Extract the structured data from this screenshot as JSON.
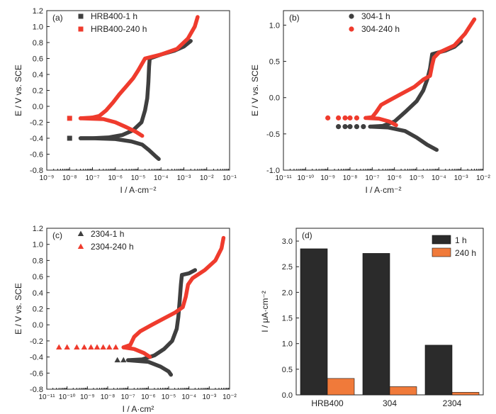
{
  "chart_data": [
    {
      "type": "scatter",
      "panel_label": "(a)",
      "xlabel": "I / A·cm⁻²",
      "ylabel": "E / V vs. SCE",
      "xscale": "log",
      "xlim": [
        1e-09,
        0.1
      ],
      "ylim": [
        -0.8,
        1.2
      ],
      "x_ticks": [
        "10⁻⁹",
        "10⁻⁸",
        "10⁻⁷",
        "10⁻⁶",
        "10⁻⁵",
        "10⁻⁴",
        "10⁻³",
        "10⁻²",
        "10⁻¹"
      ],
      "y_ticks": [
        -0.8,
        -0.6,
        -0.4,
        -0.2,
        0.0,
        0.2,
        0.4,
        0.6,
        0.8,
        1.0,
        1.2
      ],
      "legend_position": "top-left",
      "series": [
        {
          "name": "HRB400-1 h",
          "marker": "square",
          "color": "#3f3f3f",
          "anodic": [
            [
              3e-08,
              -0.4
            ],
            [
              1e-07,
              -0.4
            ],
            [
              5e-07,
              -0.39
            ],
            [
              2e-06,
              -0.36
            ],
            [
              6e-06,
              -0.3
            ],
            [
              1.4e-05,
              -0.2
            ],
            [
              2e-05,
              -0.05
            ],
            [
              2.5e-05,
              0.1
            ],
            [
              2.8e-05,
              0.3
            ],
            [
              3e-05,
              0.5
            ],
            [
              3.2e-05,
              0.6
            ],
            [
              0.0001,
              0.65
            ],
            [
              0.0004,
              0.7
            ],
            [
              0.001,
              0.75
            ],
            [
              0.002,
              0.82
            ]
          ],
          "cathodic": [
            [
              3e-08,
              -0.4
            ],
            [
              1e-07,
              -0.4
            ],
            [
              1e-06,
              -0.41
            ],
            [
              5e-06,
              -0.44
            ],
            [
              1.5e-05,
              -0.48
            ],
            [
              3e-05,
              -0.55
            ],
            [
              6e-05,
              -0.63
            ],
            [
              8e-05,
              -0.66
            ]
          ],
          "sparse": [
            [
              1e-08,
              -0.4
            ]
          ]
        },
        {
          "name": "HRB400-240 h",
          "marker": "square",
          "color": "#ef3b2d",
          "anodic": [
            [
              3e-08,
              -0.15
            ],
            [
              1e-07,
              -0.14
            ],
            [
              2e-07,
              -0.12
            ],
            [
              4e-07,
              -0.05
            ],
            [
              8e-07,
              0.05
            ],
            [
              1.5e-06,
              0.15
            ],
            [
              3e-06,
              0.25
            ],
            [
              6e-06,
              0.35
            ],
            [
              1e-05,
              0.45
            ],
            [
              2e-05,
              0.6
            ],
            [
              0.0001,
              0.65
            ],
            [
              0.0005,
              0.72
            ],
            [
              0.0015,
              0.85
            ],
            [
              0.003,
              1.0
            ],
            [
              0.004,
              1.12
            ]
          ],
          "cathodic": [
            [
              3e-08,
              -0.15
            ],
            [
              3e-07,
              -0.16
            ],
            [
              1e-06,
              -0.2
            ],
            [
              3e-06,
              -0.26
            ],
            [
              8e-06,
              -0.32
            ],
            [
              1.5e-05,
              -0.37
            ]
          ],
          "sparse": [
            [
              1e-08,
              -0.15
            ]
          ]
        }
      ]
    },
    {
      "type": "scatter",
      "panel_label": "(b)",
      "xlabel": "I / A·cm⁻²",
      "ylabel": "E / V vs. SCE",
      "xscale": "log",
      "xlim": [
        1e-11,
        0.01
      ],
      "ylim": [
        -1.0,
        1.2
      ],
      "x_ticks": [
        "10⁻¹¹",
        "10⁻¹⁰",
        "10⁻⁹",
        "10⁻⁸",
        "10⁻⁷",
        "10⁻⁶",
        "10⁻⁵",
        "10⁻⁴",
        "10⁻³",
        "10⁻²"
      ],
      "y_ticks": [
        -1.0,
        -0.5,
        0.0,
        0.5,
        1.0
      ],
      "legend_position": "top-left",
      "series": [
        {
          "name": "304-1 h",
          "marker": "circle",
          "color": "#3f3f3f",
          "anodic": [
            [
              8e-08,
              -0.4
            ],
            [
              3e-07,
              -0.39
            ],
            [
              1e-06,
              -0.33
            ],
            [
              3e-06,
              -0.2
            ],
            [
              1e-05,
              -0.05
            ],
            [
              2e-05,
              0.1
            ],
            [
              3e-05,
              0.25
            ],
            [
              4e-05,
              0.4
            ],
            [
              5e-05,
              0.6
            ],
            [
              0.0002,
              0.65
            ],
            [
              0.0005,
              0.7
            ],
            [
              0.001,
              0.78
            ]
          ],
          "cathodic": [
            [
              8e-08,
              -0.4
            ],
            [
              5e-07,
              -0.41
            ],
            [
              3e-06,
              -0.46
            ],
            [
              1e-05,
              -0.55
            ],
            [
              3e-05,
              -0.65
            ],
            [
              8e-05,
              -0.72
            ]
          ],
          "sparse": [
            [
              3e-09,
              -0.4
            ],
            [
              6e-09,
              -0.4
            ],
            [
              1e-08,
              -0.4
            ],
            [
              2e-08,
              -0.4
            ],
            [
              4e-08,
              -0.4
            ]
          ]
        },
        {
          "name": "304-240 h",
          "marker": "circle",
          "color": "#ef3b2d",
          "anodic": [
            [
              5e-08,
              -0.28
            ],
            [
              1e-07,
              -0.27
            ],
            [
              1.5e-07,
              -0.2
            ],
            [
              2.5e-07,
              -0.1
            ],
            [
              5e-07,
              -0.05
            ],
            [
              2e-06,
              0.05
            ],
            [
              8e-06,
              0.15
            ],
            [
              2e-05,
              0.25
            ],
            [
              4e-05,
              0.3
            ],
            [
              5e-05,
              0.45
            ],
            [
              6e-05,
              0.55
            ],
            [
              0.0001,
              0.62
            ],
            [
              0.0005,
              0.72
            ],
            [
              0.0015,
              0.88
            ],
            [
              0.004,
              1.08
            ]
          ],
          "cathodic": [
            [
              5e-08,
              -0.28
            ],
            [
              2e-07,
              -0.29
            ],
            [
              6e-07,
              -0.33
            ],
            [
              1.2e-06,
              -0.38
            ]
          ],
          "sparse": [
            [
              1e-09,
              -0.28
            ],
            [
              3e-09,
              -0.28
            ],
            [
              6e-09,
              -0.28
            ],
            [
              1e-08,
              -0.28
            ],
            [
              2e-08,
              -0.28
            ]
          ]
        }
      ]
    },
    {
      "type": "scatter",
      "panel_label": "(c)",
      "xlabel": "I / A·cm²",
      "ylabel": "E / V vs. SCE",
      "xscale": "log",
      "xlim": [
        1e-11,
        0.01
      ],
      "ylim": [
        -0.8,
        1.2
      ],
      "x_ticks": [
        "10⁻¹¹",
        "10⁻¹⁰",
        "10⁻⁹",
        "10⁻⁸",
        "10⁻⁷",
        "10⁻⁶",
        "10⁻⁵",
        "10⁻⁴",
        "10⁻³",
        "10⁻²"
      ],
      "y_ticks": [
        -0.8,
        -0.6,
        -0.4,
        -0.2,
        0.0,
        0.2,
        0.4,
        0.6,
        0.8,
        1.0,
        1.2
      ],
      "legend_position": "top-left",
      "series": [
        {
          "name": "2304-1 h",
          "marker": "triangle",
          "color": "#3f3f3f",
          "anodic": [
            [
              1e-07,
              -0.44
            ],
            [
              5e-07,
              -0.43
            ],
            [
              2e-06,
              -0.38
            ],
            [
              6e-06,
              -0.3
            ],
            [
              1.5e-05,
              -0.2
            ],
            [
              2.5e-05,
              -0.05
            ],
            [
              3e-05,
              0.1
            ],
            [
              3.5e-05,
              0.3
            ],
            [
              4e-05,
              0.5
            ],
            [
              4.5e-05,
              0.62
            ],
            [
              0.0001,
              0.64
            ],
            [
              0.0002,
              0.68
            ]
          ],
          "cathodic": [
            [
              1e-07,
              -0.44
            ],
            [
              1e-06,
              -0.46
            ],
            [
              4e-06,
              -0.52
            ],
            [
              1e-05,
              -0.58
            ],
            [
              1.3e-05,
              -0.62
            ]
          ],
          "sparse": [
            [
              3e-08,
              -0.44
            ],
            [
              6e-08,
              -0.44
            ]
          ]
        },
        {
          "name": "2304-240 h",
          "marker": "triangle",
          "color": "#ef3b2d",
          "anodic": [
            [
              6e-08,
              -0.28
            ],
            [
              1.3e-07,
              -0.25
            ],
            [
              2e-07,
              -0.15
            ],
            [
              4e-07,
              -0.08
            ],
            [
              1.5e-06,
              0.0
            ],
            [
              6e-06,
              0.08
            ],
            [
              2e-05,
              0.15
            ],
            [
              5e-05,
              0.22
            ],
            [
              7e-05,
              0.35
            ],
            [
              9e-05,
              0.5
            ],
            [
              0.00015,
              0.58
            ],
            [
              0.0006,
              0.68
            ],
            [
              0.002,
              0.8
            ],
            [
              0.004,
              0.95
            ],
            [
              0.005,
              1.08
            ]
          ],
          "cathodic": [
            [
              6e-08,
              -0.28
            ],
            [
              2e-07,
              -0.3
            ],
            [
              6e-07,
              -0.35
            ],
            [
              1.2e-06,
              -0.4
            ]
          ],
          "sparse": [
            [
              4e-11,
              -0.28
            ],
            [
              1e-10,
              -0.28
            ],
            [
              3e-10,
              -0.28
            ],
            [
              7e-10,
              -0.28
            ],
            [
              1.5e-09,
              -0.28
            ],
            [
              3e-09,
              -0.28
            ],
            [
              6e-09,
              -0.28
            ],
            [
              1.2e-08,
              -0.28
            ],
            [
              2.5e-08,
              -0.28
            ]
          ]
        }
      ]
    },
    {
      "type": "bar",
      "panel_label": "(d)",
      "categories": [
        "HRB400",
        "304",
        "2304"
      ],
      "xlabel": "",
      "ylabel": "I / μA·cm⁻²",
      "ylim": [
        0.0,
        3.25
      ],
      "y_ticks": [
        "0.0",
        "0.5",
        "1.0",
        "1.5",
        "2.0",
        "2.5",
        "3.0"
      ],
      "legend_position": "top-right",
      "series": [
        {
          "name": "1 h",
          "color": "#2b2b2b",
          "values": [
            2.85,
            2.76,
            0.97
          ]
        },
        {
          "name": "240 h",
          "color": "#f07a3a",
          "values": [
            0.32,
            0.16,
            0.05
          ]
        }
      ]
    }
  ]
}
